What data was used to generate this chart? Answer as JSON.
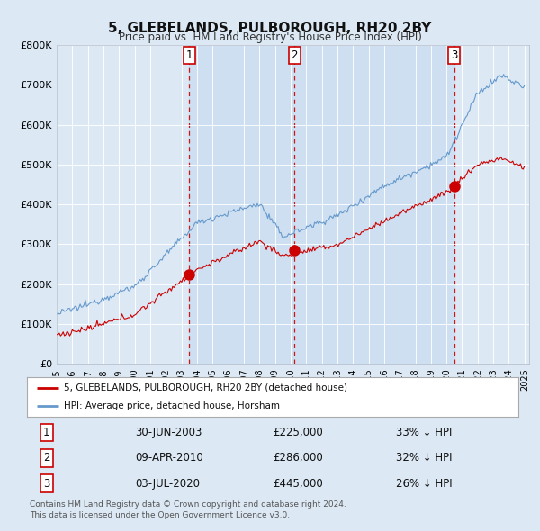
{
  "title": "5, GLEBELANDS, PULBOROUGH, RH20 2BY",
  "subtitle": "Price paid vs. HM Land Registry's House Price Index (HPI)",
  "background_color": "#dce9f5",
  "ylim": [
    0,
    800000
  ],
  "yticks": [
    0,
    100000,
    200000,
    300000,
    400000,
    500000,
    600000,
    700000,
    800000
  ],
  "ytick_labels": [
    "£0",
    "£100K",
    "£200K",
    "£300K",
    "£400K",
    "£500K",
    "£600K",
    "£700K",
    "£800K"
  ],
  "sale_year_floats": [
    2003.5,
    2010.25,
    2020.5
  ],
  "sale_prices": [
    225000,
    286000,
    445000
  ],
  "sale_labels": [
    "1",
    "2",
    "3"
  ],
  "legend_entries": [
    "5, GLEBELANDS, PULBOROUGH, RH20 2BY (detached house)",
    "HPI: Average price, detached house, Horsham"
  ],
  "table_rows": [
    [
      "1",
      "30-JUN-2003",
      "£225,000",
      "33% ↓ HPI"
    ],
    [
      "2",
      "09-APR-2010",
      "£286,000",
      "32% ↓ HPI"
    ],
    [
      "3",
      "03-JUL-2020",
      "£445,000",
      "26% ↓ HPI"
    ]
  ],
  "footnote": "Contains HM Land Registry data © Crown copyright and database right 2024.\nThis data is licensed under the Open Government Licence v3.0.",
  "red_color": "#cc0000",
  "blue_color": "#6699cc",
  "shade_color": "#d0e4f5",
  "vline_color": "#cc0000",
  "grid_color": "#c8d8e8",
  "white": "#ffffff"
}
